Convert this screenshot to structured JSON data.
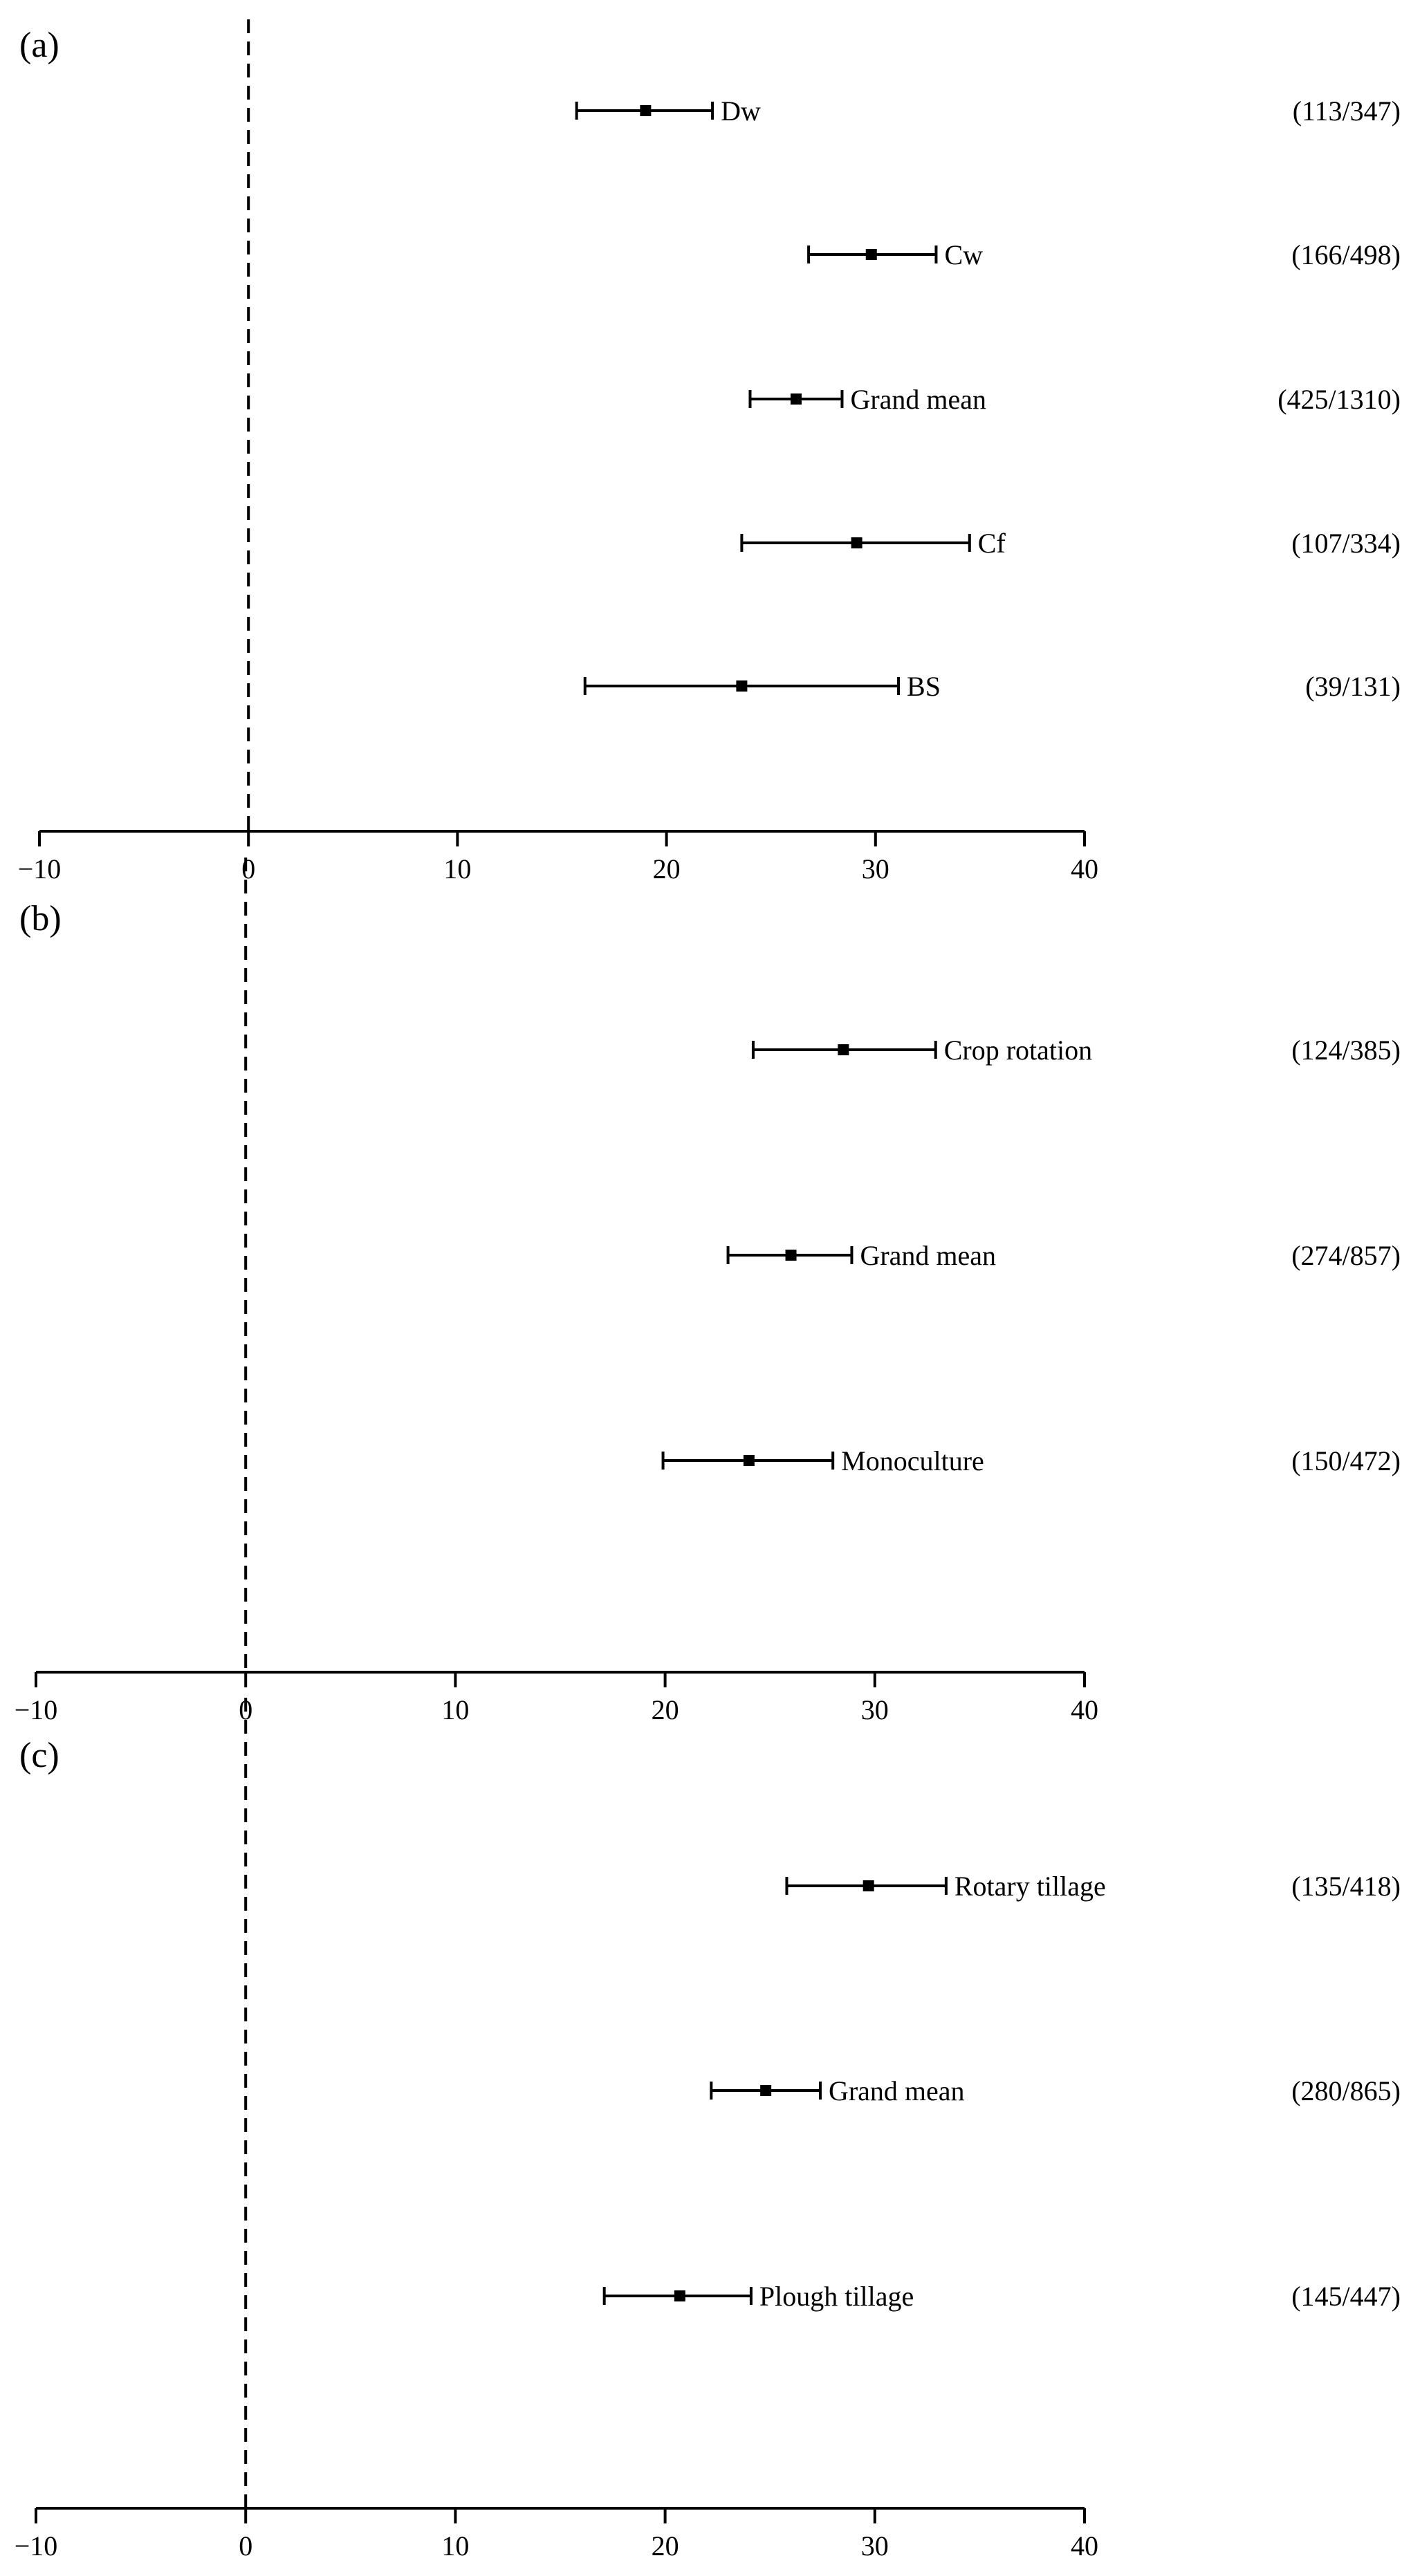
{
  "chart_data": [
    {
      "type": "forest",
      "panel_label": "(a)",
      "xlim": [
        -10,
        40
      ],
      "xticks": [
        -10,
        0,
        10,
        20,
        30,
        40
      ],
      "reference_line": 0,
      "grid": false,
      "rows": [
        {
          "label": "Dw",
          "mean": 19.0,
          "ci": [
            15.7,
            22.2
          ],
          "count": "(113/347)"
        },
        {
          "label": "Cw",
          "mean": 29.8,
          "ci": [
            26.8,
            32.9
          ],
          "count": "(166/498)"
        },
        {
          "label": "Grand mean",
          "mean": 26.2,
          "ci": [
            24.0,
            28.4
          ],
          "count": "(425/1310)"
        },
        {
          "label": "Cf",
          "mean": 29.1,
          "ci": [
            23.6,
            34.5
          ],
          "count": "(107/334)"
        },
        {
          "label": "BS",
          "mean": 23.6,
          "ci": [
            16.1,
            31.1
          ],
          "count": "(39/131)"
        }
      ]
    },
    {
      "type": "forest",
      "panel_label": "(b)",
      "xlim": [
        -10,
        40
      ],
      "xticks": [
        -10,
        0,
        10,
        20,
        30,
        40
      ],
      "reference_line": 0,
      "grid": false,
      "rows": [
        {
          "label": "Crop rotation",
          "mean": 28.5,
          "ci": [
            24.2,
            32.9
          ],
          "count": "(124/385)"
        },
        {
          "label": "Grand mean",
          "mean": 26.0,
          "ci": [
            23.0,
            28.9
          ],
          "count": "(274/857)"
        },
        {
          "label": "Monoculture",
          "mean": 24.0,
          "ci": [
            19.9,
            28.0
          ],
          "count": "(150/472)"
        }
      ]
    },
    {
      "type": "forest",
      "panel_label": "(c)",
      "xlim": [
        -10,
        40
      ],
      "xticks": [
        -10,
        0,
        10,
        20,
        30,
        40
      ],
      "reference_line": 0,
      "grid": false,
      "rows": [
        {
          "label": "Rotary tillage",
          "mean": 29.7,
          "ci": [
            25.8,
            33.4
          ],
          "count": "(135/418)"
        },
        {
          "label": "Grand mean",
          "mean": 24.8,
          "ci": [
            22.2,
            27.4
          ],
          "count": "(280/865)"
        },
        {
          "label": "Plough tillage",
          "mean": 20.7,
          "ci": [
            17.1,
            24.1
          ],
          "count": "(145/447)"
        }
      ]
    }
  ]
}
